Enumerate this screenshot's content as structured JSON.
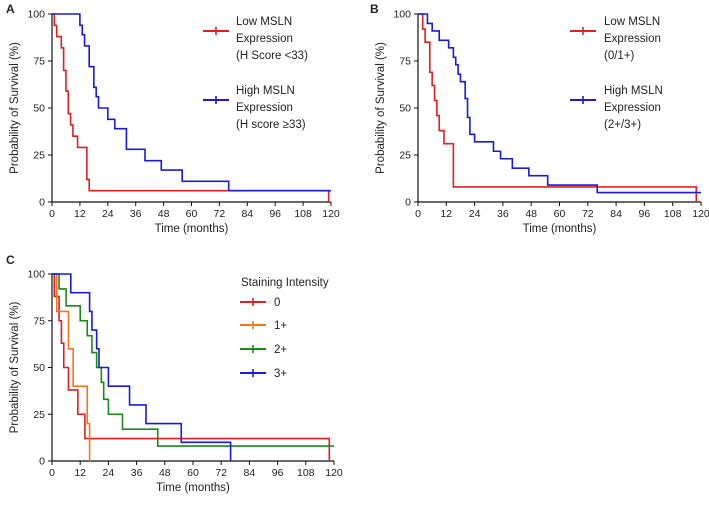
{
  "chart_data": [
    {
      "panel": "A",
      "type": "line",
      "subtype": "kaplan-meier",
      "xlabel": "Time (months)",
      "ylabel": "Probability of Survival (%)",
      "xlim": [
        0,
        120
      ],
      "ylim": [
        0,
        100
      ],
      "xticks": [
        "0",
        "12",
        "24",
        "36",
        "48",
        "60",
        "72",
        "84",
        "96",
        "108",
        "120"
      ],
      "yticks": [
        "0",
        "25",
        "50",
        "75",
        "100"
      ],
      "legend_position": "top-right",
      "series": [
        {
          "name": "Low MSLN",
          "legend_lines": [
            "Low MSLN",
            "Expression",
            "(H Score <33)"
          ],
          "color": "#e02020",
          "steps": [
            [
              0,
              100
            ],
            [
              1,
              94
            ],
            [
              2,
              88
            ],
            [
              4,
              82
            ],
            [
              5,
              70
            ],
            [
              6,
              59
            ],
            [
              7,
              47
            ],
            [
              8,
              41
            ],
            [
              9,
              35
            ],
            [
              11,
              29
            ],
            [
              15,
              12
            ],
            [
              16,
              6
            ],
            [
              119,
              0
            ]
          ],
          "end": 119
        },
        {
          "name": "High MSLN",
          "legend_lines": [
            "High MSLN",
            "Expression",
            "(H score ≥33)"
          ],
          "color": "#1a1adc",
          "steps": [
            [
              0,
              100
            ],
            [
              12,
              94
            ],
            [
              13,
              89
            ],
            [
              14,
              83
            ],
            [
              16,
              72
            ],
            [
              18,
              61
            ],
            [
              19,
              56
            ],
            [
              20,
              50
            ],
            [
              24,
              44
            ],
            [
              27,
              39
            ],
            [
              32,
              28
            ],
            [
              40,
              22
            ],
            [
              47,
              17
            ],
            [
              56,
              11
            ],
            [
              76,
              6
            ]
          ],
          "end": 120
        }
      ]
    },
    {
      "panel": "B",
      "type": "line",
      "subtype": "kaplan-meier",
      "xlabel": "Time (months)",
      "ylabel": "Probability of Survival (%)",
      "xlim": [
        0,
        120
      ],
      "ylim": [
        0,
        100
      ],
      "xticks": [
        "0",
        "12",
        "24",
        "36",
        "48",
        "60",
        "72",
        "84",
        "96",
        "108",
        "120"
      ],
      "yticks": [
        "0",
        "25",
        "50",
        "75",
        "100"
      ],
      "legend_position": "top-right",
      "series": [
        {
          "name": "Low MSLN",
          "legend_lines": [
            "Low MSLN",
            "Expression",
            "(0/1+)"
          ],
          "color": "#e02020",
          "steps": [
            [
              0,
              100
            ],
            [
              2,
              92
            ],
            [
              3,
              85
            ],
            [
              5,
              69
            ],
            [
              6,
              62
            ],
            [
              7,
              54
            ],
            [
              8,
              46
            ],
            [
              9,
              38
            ],
            [
              11,
              31
            ],
            [
              15,
              8
            ],
            [
              118,
              0
            ]
          ],
          "end": 118
        },
        {
          "name": "High MSLN",
          "legend_lines": [
            "High MSLN",
            "Expression",
            "(2+/3+)"
          ],
          "color": "#1a1adc",
          "steps": [
            [
              0,
              100
            ],
            [
              4,
              95
            ],
            [
              6,
              91
            ],
            [
              9,
              86
            ],
            [
              13,
              82
            ],
            [
              15,
              77
            ],
            [
              16,
              73
            ],
            [
              17,
              68
            ],
            [
              18,
              64
            ],
            [
              20,
              55
            ],
            [
              21,
              45
            ],
            [
              22,
              36
            ],
            [
              24,
              32
            ],
            [
              32,
              27
            ],
            [
              35,
              23
            ],
            [
              40,
              18
            ],
            [
              47,
              14
            ],
            [
              55,
              9
            ],
            [
              76,
              5
            ]
          ],
          "end": 120
        }
      ]
    },
    {
      "panel": "C",
      "type": "line",
      "subtype": "kaplan-meier",
      "xlabel": "Time (months)",
      "ylabel": "Probability of Survival (%)",
      "xlim": [
        0,
        120
      ],
      "ylim": [
        0,
        100
      ],
      "xticks": [
        "0",
        "12",
        "24",
        "36",
        "48",
        "60",
        "72",
        "84",
        "96",
        "108",
        "120"
      ],
      "yticks": [
        "0",
        "25",
        "50",
        "75",
        "100"
      ],
      "legend_title": "Staining Intensity",
      "legend_position": "top-right",
      "series": [
        {
          "name": "0",
          "color": "#e02020",
          "steps": [
            [
              0,
              100
            ],
            [
              1,
              88
            ],
            [
              3,
              75
            ],
            [
              4,
              63
            ],
            [
              5,
              50
            ],
            [
              7,
              38
            ],
            [
              11,
              25
            ],
            [
              14,
              12
            ],
            [
              118,
              0
            ]
          ],
          "end": 118
        },
        {
          "name": "1+",
          "color": "#f07818",
          "steps": [
            [
              0,
              100
            ],
            [
              2,
              80
            ],
            [
              7,
              60
            ],
            [
              9,
              40
            ],
            [
              15,
              20
            ],
            [
              16,
              0
            ]
          ],
          "end": 16
        },
        {
          "name": "2+",
          "color": "#1a8a1a",
          "steps": [
            [
              0,
              100
            ],
            [
              3,
              92
            ],
            [
              6,
              83
            ],
            [
              12,
              75
            ],
            [
              15,
              67
            ],
            [
              17,
              58
            ],
            [
              19,
              50
            ],
            [
              21,
              42
            ],
            [
              22,
              33
            ],
            [
              24,
              25
            ],
            [
              30,
              17
            ],
            [
              45,
              8
            ]
          ],
          "end": 120
        },
        {
          "name": "3+",
          "color": "#1a1adc",
          "steps": [
            [
              0,
              100
            ],
            [
              8,
              90
            ],
            [
              16,
              80
            ],
            [
              17,
              70
            ],
            [
              19,
              60
            ],
            [
              20,
              50
            ],
            [
              24,
              40
            ],
            [
              33,
              30
            ],
            [
              40,
              20
            ],
            [
              55,
              10
            ],
            [
              76,
              0
            ]
          ],
          "end": 76
        }
      ]
    }
  ]
}
